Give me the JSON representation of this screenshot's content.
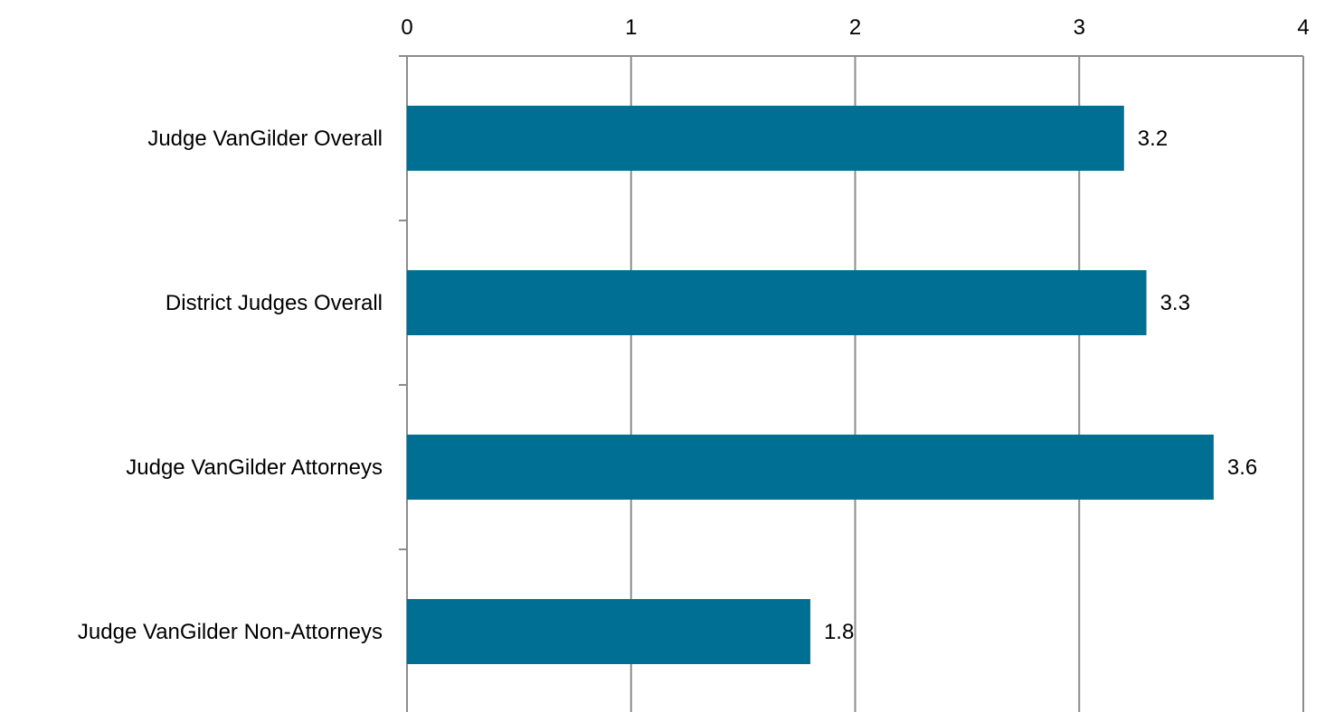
{
  "chart_data": {
    "type": "bar",
    "orientation": "horizontal",
    "categories": [
      "Judge VanGilder Overall",
      "District Judges Overall",
      "Judge VanGilder Attorneys",
      "Judge VanGilder Non-Attorneys"
    ],
    "values": [
      3.2,
      3.3,
      3.6,
      1.8
    ],
    "data_labels": [
      "3.2",
      "3.3",
      "3.6",
      "1.8"
    ],
    "x_ticks": [
      "0",
      "1",
      "2",
      "3",
      "4"
    ],
    "xlim": [
      0,
      4
    ],
    "x_axis_position": "top",
    "grid": true,
    "legend": "none",
    "title": "",
    "xlabel": "",
    "ylabel": "",
    "colors": {
      "bar": "#006f94",
      "grid": "#8c8c8c",
      "text": "#000000"
    }
  }
}
